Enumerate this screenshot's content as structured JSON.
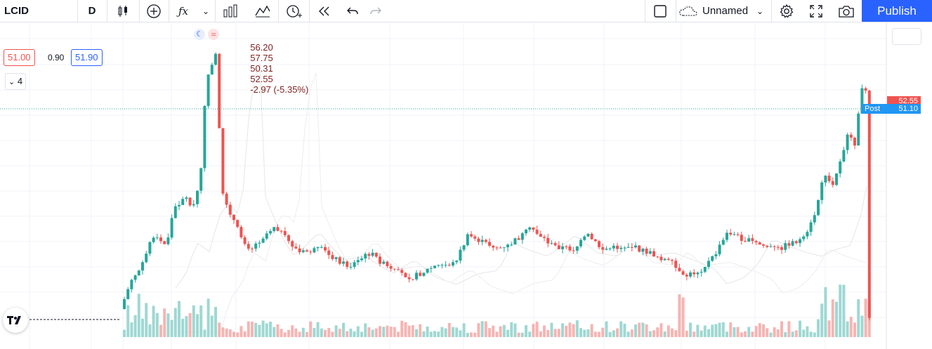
{
  "toolbar": {
    "symbol": "LCID",
    "interval": "D",
    "layout_name": "Unnamed",
    "publish_label": "Publish",
    "icons": [
      "candles-icon",
      "add-indicator-icon",
      "fx-icon",
      "chevron-down-icon",
      "bar-chart-icon",
      "compare-icon",
      "alert-icon",
      "replay-icon",
      "undo-icon",
      "redo-icon",
      "square-icon",
      "cloud-icon",
      "settings-icon",
      "fullscreen-icon",
      "camera-icon"
    ]
  },
  "legend": {
    "open": "56.20",
    "high": "57.75",
    "low": "50.31",
    "close": "52.55",
    "change": "-2.97 (-5.35%)"
  },
  "quote": {
    "bid": "51.00",
    "spread": "0.90",
    "ask": "51.90"
  },
  "indicators_toggle": "4",
  "price_labels": {
    "last": "52.55",
    "post_label": "Post",
    "post_value": "51.10"
  },
  "colors": {
    "up": "#26a69a",
    "down": "#ef5350",
    "accent": "#2962ff"
  },
  "chart_data": {
    "type": "candlestick",
    "symbol": "LCID",
    "interval": "D",
    "last_bar": {
      "open": 56.2,
      "high": 57.75,
      "low": 50.31,
      "close": 52.55
    }
  }
}
